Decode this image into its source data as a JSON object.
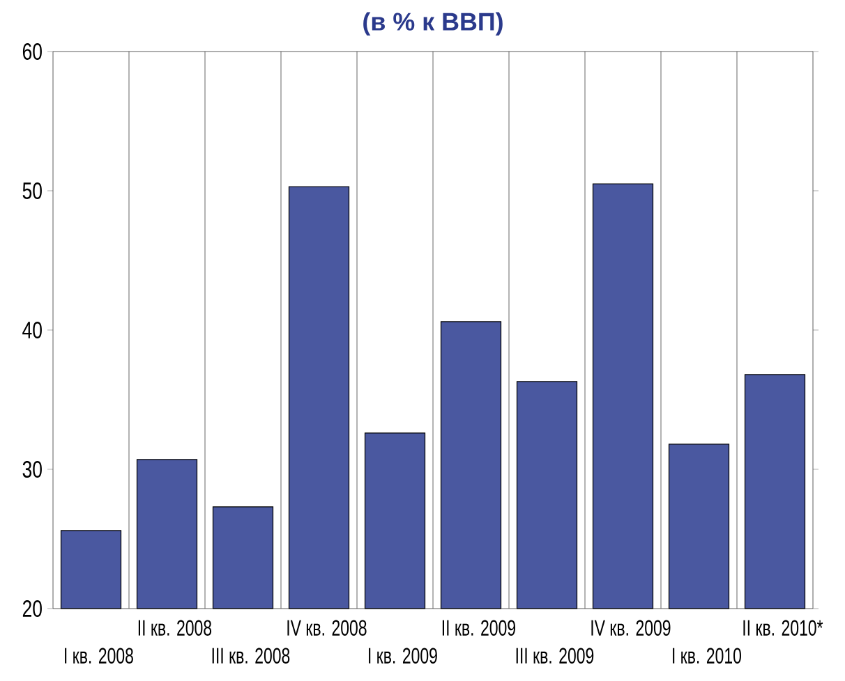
{
  "chart_data": {
    "type": "bar",
    "title": "(в % к ВВП)",
    "categories": [
      "I кв. 2008",
      "II кв. 2008",
      "III кв. 2008",
      "IV кв. 2008",
      "I кв. 2009",
      "II кв. 2009",
      "III кв. 2009",
      "IV кв. 2009",
      "I кв. 2010",
      "II кв. 2010*"
    ],
    "values": [
      25.6,
      30.7,
      27.3,
      50.3,
      32.6,
      40.6,
      36.3,
      50.5,
      31.8,
      36.8
    ],
    "color": "#4a58a0",
    "ylim": [
      20,
      60
    ],
    "yticks": [
      20,
      30,
      40,
      50,
      60
    ],
    "grid": "x"
  }
}
